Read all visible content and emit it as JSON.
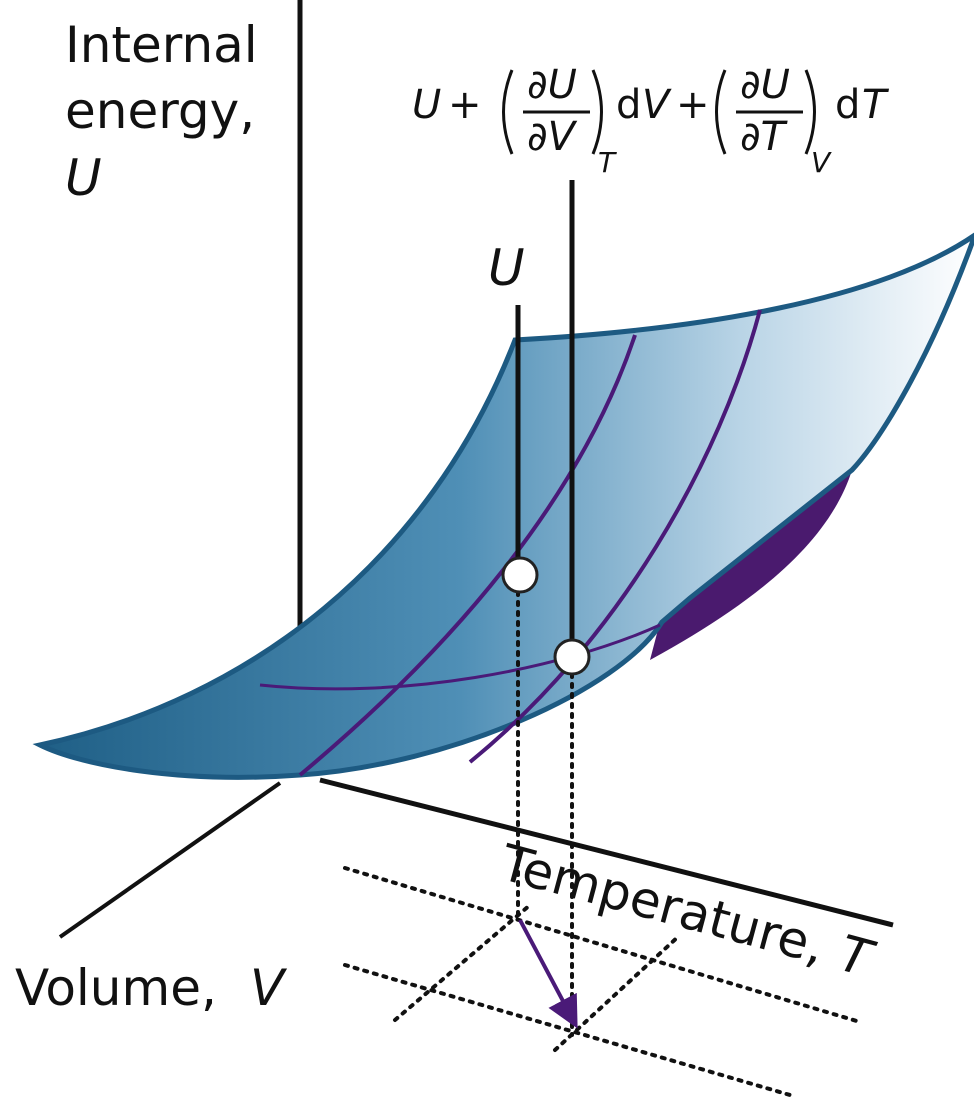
{
  "axes": {
    "energy": {
      "lines": [
        "Internal",
        "energy,"
      ],
      "symbol": "U"
    },
    "temperature": {
      "label": "Temperature,",
      "symbol": "T"
    },
    "volume": {
      "label": "Volume,",
      "symbol": "V"
    }
  },
  "points": [
    {
      "label": "U"
    },
    {
      "formula": [
        "U",
        "+",
        "∂U",
        "∂V",
        "T",
        "d",
        "V",
        "+",
        "∂U",
        "∂T",
        "V",
        "d",
        "T"
      ]
    }
  ]
}
